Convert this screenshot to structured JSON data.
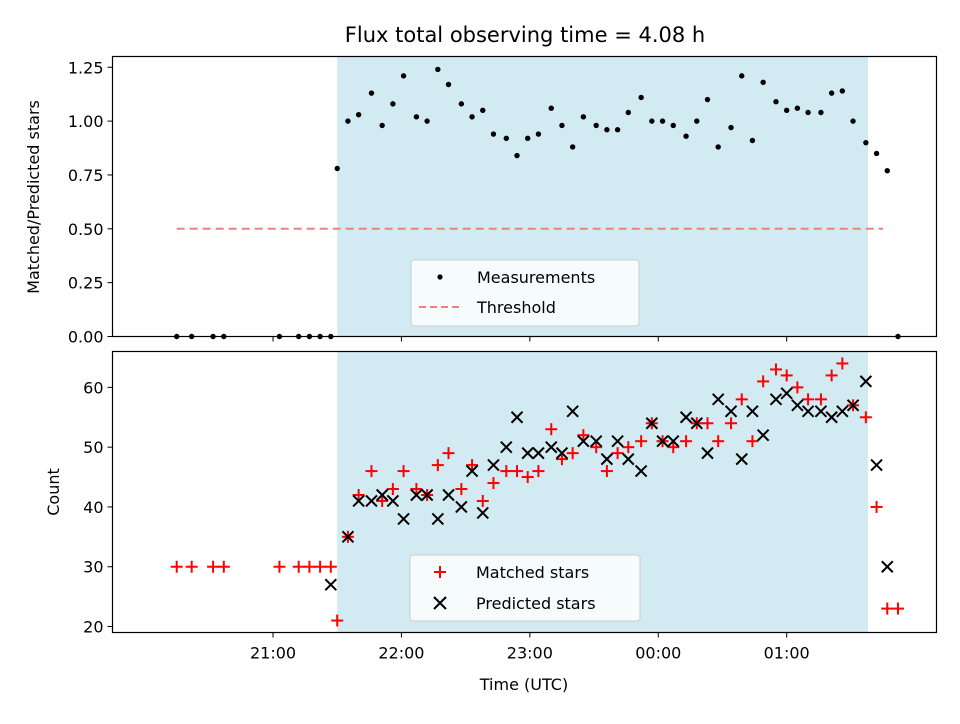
{
  "chart_data": [
    {
      "type": "scatter",
      "title": "Flux total observing time = 4.08 h",
      "xlabel": "",
      "ylabel": "Matched/Predicted stars",
      "ylim": [
        0,
        1.3
      ],
      "yticks": [
        "0.00",
        "0.25",
        "0.50",
        "0.75",
        "1.00",
        "1.25"
      ],
      "shaded_interval": [
        "21:30",
        "01:38"
      ],
      "shade_color": "#add8e6",
      "threshold": {
        "name": "Threshold",
        "value": 0.5,
        "x_range": [
          "20:15",
          "01:45"
        ],
        "color": "#f08080"
      },
      "legend": {
        "placement": "lower center",
        "entries": [
          "Measurements",
          "Threshold"
        ]
      },
      "series": [
        {
          "name": "Measurements",
          "marker": "dot",
          "color": "#000000",
          "points": [
            [
              "20:15",
              0.0
            ],
            [
              "20:22",
              0.0
            ],
            [
              "20:32",
              0.0
            ],
            [
              "20:37",
              0.0
            ],
            [
              "21:03",
              0.0
            ],
            [
              "21:12",
              0.0
            ],
            [
              "21:17",
              0.0
            ],
            [
              "21:22",
              0.0
            ],
            [
              "21:27",
              0.0
            ],
            [
              "21:30",
              0.78
            ],
            [
              "21:35",
              1.0
            ],
            [
              "21:40",
              1.03
            ],
            [
              "21:46",
              1.13
            ],
            [
              "21:51",
              0.98
            ],
            [
              "21:56",
              1.08
            ],
            [
              "22:01",
              1.21
            ],
            [
              "22:07",
              1.02
            ],
            [
              "22:12",
              1.0
            ],
            [
              "22:17",
              1.24
            ],
            [
              "22:22",
              1.17
            ],
            [
              "22:28",
              1.08
            ],
            [
              "22:33",
              1.02
            ],
            [
              "22:38",
              1.05
            ],
            [
              "22:43",
              0.94
            ],
            [
              "22:49",
              0.92
            ],
            [
              "22:54",
              0.84
            ],
            [
              "22:59",
              0.92
            ],
            [
              "23:04",
              0.94
            ],
            [
              "23:10",
              1.06
            ],
            [
              "23:15",
              0.98
            ],
            [
              "23:20",
              0.88
            ],
            [
              "23:25",
              1.02
            ],
            [
              "23:31",
              0.98
            ],
            [
              "23:36",
              0.96
            ],
            [
              "23:41",
              0.96
            ],
            [
              "23:46",
              1.04
            ],
            [
              "23:52",
              1.11
            ],
            [
              "23:57",
              1.0
            ],
            [
              "00:02",
              1.0
            ],
            [
              "00:07",
              0.98
            ],
            [
              "00:13",
              0.93
            ],
            [
              "00:18",
              1.0
            ],
            [
              "00:23",
              1.1
            ],
            [
              "00:28",
              0.88
            ],
            [
              "00:34",
              0.97
            ],
            [
              "00:39",
              1.21
            ],
            [
              "00:44",
              0.91
            ],
            [
              "00:49",
              1.18
            ],
            [
              "00:55",
              1.09
            ],
            [
              "01:00",
              1.05
            ],
            [
              "01:05",
              1.06
            ],
            [
              "01:10",
              1.04
            ],
            [
              "01:16",
              1.04
            ],
            [
              "01:21",
              1.13
            ],
            [
              "01:26",
              1.14
            ],
            [
              "01:31",
              1.0
            ],
            [
              "01:37",
              0.9
            ],
            [
              "01:42",
              0.85
            ],
            [
              "01:47",
              0.77
            ],
            [
              "01:52",
              0.0
            ]
          ]
        }
      ]
    },
    {
      "type": "scatter",
      "title": "",
      "xlabel": "Time (UTC)",
      "ylabel": "Count",
      "ylim": [
        19,
        66
      ],
      "yticks": [
        "20",
        "30",
        "40",
        "50",
        "60"
      ],
      "xticks": [
        "21:00",
        "22:00",
        "23:00",
        "00:00",
        "01:00"
      ],
      "shaded_interval": [
        "21:30",
        "01:38"
      ],
      "legend": {
        "placement": "lower center",
        "entries": [
          "Matched stars",
          "Predicted stars"
        ]
      },
      "series": [
        {
          "name": "Matched stars",
          "marker": "plus",
          "color": "#ff0000",
          "points": [
            [
              "20:15",
              30
            ],
            [
              "20:22",
              30
            ],
            [
              "20:32",
              30
            ],
            [
              "20:37",
              30
            ],
            [
              "21:03",
              30
            ],
            [
              "21:12",
              30
            ],
            [
              "21:17",
              30
            ],
            [
              "21:22",
              30
            ],
            [
              "21:27",
              30
            ],
            [
              "21:30",
              21
            ],
            [
              "21:35",
              35
            ],
            [
              "21:40",
              42
            ],
            [
              "21:46",
              46
            ],
            [
              "21:51",
              41
            ],
            [
              "21:56",
              43
            ],
            [
              "22:01",
              46
            ],
            [
              "22:07",
              43
            ],
            [
              "22:12",
              42
            ],
            [
              "22:17",
              47
            ],
            [
              "22:22",
              49
            ],
            [
              "22:28",
              43
            ],
            [
              "22:33",
              47
            ],
            [
              "22:38",
              41
            ],
            [
              "22:43",
              44
            ],
            [
              "22:49",
              46
            ],
            [
              "22:54",
              46
            ],
            [
              "22:59",
              45
            ],
            [
              "23:04",
              46
            ],
            [
              "23:10",
              53
            ],
            [
              "23:15",
              48
            ],
            [
              "23:20",
              49
            ],
            [
              "23:25",
              52
            ],
            [
              "23:31",
              50
            ],
            [
              "23:36",
              46
            ],
            [
              "23:41",
              49
            ],
            [
              "23:46",
              50
            ],
            [
              "23:52",
              51
            ],
            [
              "23:57",
              54
            ],
            [
              "00:02",
              51
            ],
            [
              "00:07",
              50
            ],
            [
              "00:13",
              51
            ],
            [
              "00:18",
              54
            ],
            [
              "00:23",
              54
            ],
            [
              "00:28",
              51
            ],
            [
              "00:34",
              54
            ],
            [
              "00:39",
              58
            ],
            [
              "00:44",
              51
            ],
            [
              "00:49",
              61
            ],
            [
              "00:55",
              63
            ],
            [
              "01:00",
              62
            ],
            [
              "01:05",
              60
            ],
            [
              "01:10",
              58
            ],
            [
              "01:16",
              58
            ],
            [
              "01:21",
              62
            ],
            [
              "01:26",
              64
            ],
            [
              "01:31",
              57
            ],
            [
              "01:37",
              55
            ],
            [
              "01:42",
              40
            ],
            [
              "01:47",
              23
            ],
            [
              "01:52",
              23
            ]
          ]
        },
        {
          "name": "Predicted stars",
          "marker": "x",
          "color": "#000000",
          "points": [
            [
              "21:27",
              27
            ],
            [
              "21:35",
              35
            ],
            [
              "21:40",
              41
            ],
            [
              "21:46",
              41
            ],
            [
              "21:51",
              42
            ],
            [
              "21:56",
              41
            ],
            [
              "22:01",
              38
            ],
            [
              "22:07",
              42
            ],
            [
              "22:12",
              42
            ],
            [
              "22:17",
              38
            ],
            [
              "22:22",
              42
            ],
            [
              "22:28",
              40
            ],
            [
              "22:33",
              46
            ],
            [
              "22:38",
              39
            ],
            [
              "22:43",
              47
            ],
            [
              "22:49",
              50
            ],
            [
              "22:54",
              55
            ],
            [
              "22:59",
              49
            ],
            [
              "23:04",
              49
            ],
            [
              "23:10",
              50
            ],
            [
              "23:15",
              49
            ],
            [
              "23:20",
              56
            ],
            [
              "23:25",
              51
            ],
            [
              "23:31",
              51
            ],
            [
              "23:36",
              48
            ],
            [
              "23:41",
              51
            ],
            [
              "23:46",
              48
            ],
            [
              "23:52",
              46
            ],
            [
              "23:57",
              54
            ],
            [
              "00:02",
              51
            ],
            [
              "00:07",
              51
            ],
            [
              "00:13",
              55
            ],
            [
              "00:18",
              54
            ],
            [
              "00:23",
              49
            ],
            [
              "00:28",
              58
            ],
            [
              "00:34",
              56
            ],
            [
              "00:39",
              48
            ],
            [
              "00:44",
              56
            ],
            [
              "00:49",
              52
            ],
            [
              "00:55",
              58
            ],
            [
              "01:00",
              59
            ],
            [
              "01:05",
              57
            ],
            [
              "01:10",
              56
            ],
            [
              "01:16",
              56
            ],
            [
              "01:21",
              55
            ],
            [
              "01:26",
              56
            ],
            [
              "01:31",
              57
            ],
            [
              "01:37",
              61
            ],
            [
              "01:42",
              47
            ],
            [
              "01:47",
              30
            ]
          ]
        }
      ]
    }
  ]
}
